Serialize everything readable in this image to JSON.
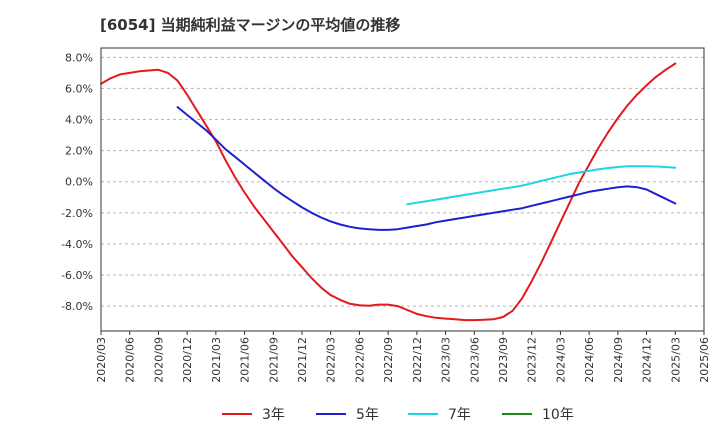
{
  "chart_data": {
    "type": "line",
    "title": "[6054]  当期純利益マージンの平均値の推移",
    "xlabel": "",
    "ylabel": "",
    "ylim": [
      -9.6,
      8.6
    ],
    "y_ticks": [
      "8.0%",
      "6.0%",
      "4.0%",
      "2.0%",
      "0.0%",
      "-2.0%",
      "-4.0%",
      "-6.0%",
      "-8.0%"
    ],
    "y_tick_values": [
      8,
      6,
      4,
      2,
      0,
      -2,
      -4,
      -6,
      -8
    ],
    "x_ticks": [
      "2020/03",
      "2020/06",
      "2020/09",
      "2020/12",
      "2021/03",
      "2021/06",
      "2021/09",
      "2021/12",
      "2022/03",
      "2022/06",
      "2022/09",
      "2022/12",
      "2023/03",
      "2023/06",
      "2023/09",
      "2023/12",
      "2024/03",
      "2024/06",
      "2024/09",
      "2024/12",
      "2025/03",
      "2025/06"
    ],
    "x_range": [
      "2020/03",
      "2025/06"
    ],
    "grid": "horizontal-dashed",
    "legend_position": "bottom",
    "series": [
      {
        "name": "3年",
        "color": "#e31a1c",
        "x": [
          "2020/03",
          "2020/04",
          "2020/05",
          "2020/06",
          "2020/07",
          "2020/08",
          "2020/09",
          "2020/10",
          "2020/11",
          "2020/12",
          "2021/01",
          "2021/02",
          "2021/03",
          "2021/04",
          "2021/05",
          "2021/06",
          "2021/07",
          "2021/08",
          "2021/09",
          "2021/10",
          "2021/11",
          "2021/12",
          "2022/01",
          "2022/02",
          "2022/03",
          "2022/04",
          "2022/05",
          "2022/06",
          "2022/07",
          "2022/08",
          "2022/09",
          "2022/10",
          "2022/11",
          "2022/12",
          "2023/01",
          "2023/02",
          "2023/03",
          "2023/04",
          "2023/05",
          "2023/06",
          "2023/07",
          "2023/08",
          "2023/09",
          "2023/10",
          "2023/11",
          "2023/12",
          "2024/01",
          "2024/02",
          "2024/03",
          "2024/04",
          "2024/05",
          "2024/06",
          "2024/07",
          "2024/08",
          "2024/09",
          "2024/10",
          "2024/11",
          "2024/12",
          "2025/01",
          "2025/02",
          "2025/03"
        ],
        "y": [
          6.3,
          6.65,
          6.9,
          7.0,
          7.1,
          7.15,
          7.2,
          7.0,
          6.5,
          5.6,
          4.6,
          3.6,
          2.6,
          1.4,
          0.3,
          -0.7,
          -1.6,
          -2.4,
          -3.2,
          -4.0,
          -4.8,
          -5.5,
          -6.2,
          -6.8,
          -7.3,
          -7.6,
          -7.85,
          -7.95,
          -7.98,
          -7.9,
          -7.9,
          -8.0,
          -8.25,
          -8.5,
          -8.65,
          -8.75,
          -8.8,
          -8.85,
          -8.9,
          -8.9,
          -8.88,
          -8.85,
          -8.7,
          -8.3,
          -7.5,
          -6.4,
          -5.2,
          -3.9,
          -2.6,
          -1.3,
          0.0,
          1.1,
          2.2,
          3.2,
          4.1,
          4.9,
          5.6,
          6.2,
          6.75,
          7.2,
          7.6
        ]
      },
      {
        "name": "5年",
        "color": "#1f1fcf",
        "x": [
          "2020/11",
          "2020/12",
          "2021/01",
          "2021/02",
          "2021/03",
          "2021/04",
          "2021/05",
          "2021/06",
          "2021/07",
          "2021/08",
          "2021/09",
          "2021/10",
          "2021/11",
          "2021/12",
          "2022/01",
          "2022/02",
          "2022/03",
          "2022/04",
          "2022/05",
          "2022/06",
          "2022/07",
          "2022/08",
          "2022/09",
          "2022/10",
          "2022/11",
          "2022/12",
          "2023/01",
          "2023/02",
          "2023/03",
          "2023/04",
          "2023/05",
          "2023/06",
          "2023/07",
          "2023/08",
          "2023/09",
          "2023/10",
          "2023/11",
          "2023/12",
          "2024/01",
          "2024/02",
          "2024/03",
          "2024/04",
          "2024/05",
          "2024/06",
          "2024/07",
          "2024/08",
          "2024/09",
          "2024/10",
          "2024/11",
          "2024/12",
          "2025/01",
          "2025/02",
          "2025/03"
        ],
        "y": [
          4.8,
          4.3,
          3.8,
          3.3,
          2.7,
          2.1,
          1.6,
          1.1,
          0.6,
          0.1,
          -0.4,
          -0.85,
          -1.25,
          -1.65,
          -2.0,
          -2.3,
          -2.55,
          -2.75,
          -2.9,
          -3.0,
          -3.05,
          -3.1,
          -3.1,
          -3.05,
          -2.95,
          -2.85,
          -2.75,
          -2.6,
          -2.5,
          -2.4,
          -2.3,
          -2.2,
          -2.1,
          -2.0,
          -1.9,
          -1.8,
          -1.7,
          -1.55,
          -1.4,
          -1.25,
          -1.1,
          -0.95,
          -0.8,
          -0.65,
          -0.55,
          -0.45,
          -0.35,
          -0.3,
          -0.35,
          -0.5,
          -0.8,
          -1.1,
          -1.4
        ]
      },
      {
        "name": "7年",
        "color": "#1ad6e6",
        "x": [
          "2022/11",
          "2022/12",
          "2023/01",
          "2023/02",
          "2023/03",
          "2023/04",
          "2023/05",
          "2023/06",
          "2023/07",
          "2023/08",
          "2023/09",
          "2023/10",
          "2023/11",
          "2023/12",
          "2024/01",
          "2024/02",
          "2024/03",
          "2024/04",
          "2024/05",
          "2024/06",
          "2024/07",
          "2024/08",
          "2024/09",
          "2024/10",
          "2024/11",
          "2024/12",
          "2025/01",
          "2025/02",
          "2025/03"
        ],
        "y": [
          -1.45,
          -1.35,
          -1.25,
          -1.15,
          -1.05,
          -0.95,
          -0.85,
          -0.75,
          -0.65,
          -0.55,
          -0.45,
          -0.35,
          -0.25,
          -0.1,
          0.05,
          0.2,
          0.35,
          0.5,
          0.6,
          0.7,
          0.8,
          0.88,
          0.95,
          1.0,
          1.0,
          1.0,
          0.98,
          0.95,
          0.9
        ]
      },
      {
        "name": "10年",
        "color": "#1a8a1a",
        "x": [],
        "y": []
      }
    ]
  }
}
